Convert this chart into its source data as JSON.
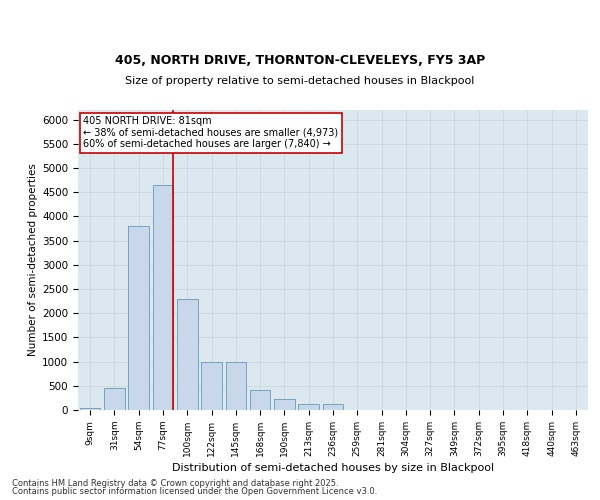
{
  "title1": "405, NORTH DRIVE, THORNTON-CLEVELEYS, FY5 3AP",
  "title2": "Size of property relative to semi-detached houses in Blackpool",
  "xlabel": "Distribution of semi-detached houses by size in Blackpool",
  "ylabel": "Number of semi-detached properties",
  "categories": [
    "9sqm",
    "31sqm",
    "54sqm",
    "77sqm",
    "100sqm",
    "122sqm",
    "145sqm",
    "168sqm",
    "190sqm",
    "213sqm",
    "236sqm",
    "259sqm",
    "281sqm",
    "304sqm",
    "327sqm",
    "349sqm",
    "372sqm",
    "395sqm",
    "418sqm",
    "440sqm",
    "463sqm"
  ],
  "values": [
    50,
    450,
    3800,
    4650,
    2300,
    1000,
    1000,
    420,
    230,
    120,
    120,
    0,
    0,
    0,
    0,
    0,
    0,
    0,
    0,
    0,
    0
  ],
  "bar_color": "#c8d8ea",
  "bar_edgecolor": "#6699bb",
  "vline_color": "#cc0000",
  "vline_x": 3.4,
  "annotation_title": "405 NORTH DRIVE: 81sqm",
  "annotation_line1": "← 38% of semi-detached houses are smaller (4,973)",
  "annotation_line2": "60% of semi-detached houses are larger (7,840) →",
  "box_edgecolor": "#cc0000",
  "ylim": [
    0,
    6200
  ],
  "yticks": [
    0,
    500,
    1000,
    1500,
    2000,
    2500,
    3000,
    3500,
    4000,
    4500,
    5000,
    5500,
    6000
  ],
  "grid_color": "#c8d4de",
  "bg_color": "#dce8f0",
  "footer1": "Contains HM Land Registry data © Crown copyright and database right 2025.",
  "footer2": "Contains public sector information licensed under the Open Government Licence v3.0."
}
